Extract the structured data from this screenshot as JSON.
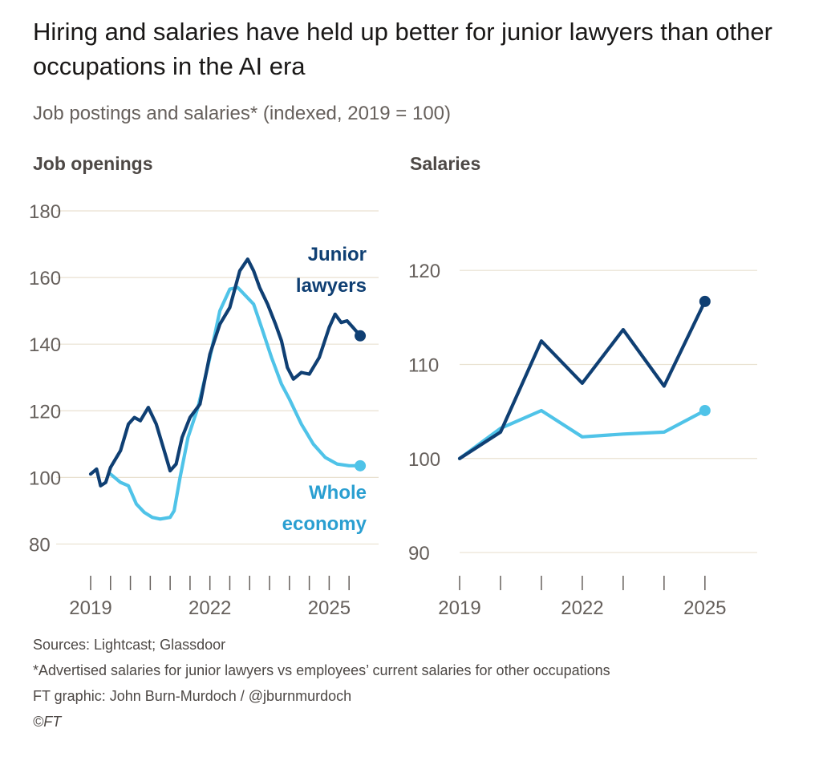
{
  "title": "Hiring and salaries have held up better for junior lawyers than other occupations in the AI era",
  "subtitle": "Job postings and salaries* (indexed, 2019 = 100)",
  "colors": {
    "junior_lawyers": "#0f3f73",
    "whole_economy": "#4fc3e8",
    "gridline": "#e9e1d0",
    "axis_text": "#66605c",
    "tick": "#66605c"
  },
  "chart_data": [
    {
      "type": "line",
      "title": "Job openings",
      "xlabel": "",
      "ylabel": "",
      "x_range": [
        2019,
        2025.9
      ],
      "ylim": [
        70,
        180
      ],
      "y_ticks": [
        80,
        100,
        120,
        140,
        160,
        180
      ],
      "x_ticks": [
        2019,
        2019.5,
        2020,
        2020.5,
        2021,
        2021.5,
        2022,
        2022.5,
        2023,
        2023.5,
        2024,
        2024.5,
        2025,
        2025.5
      ],
      "x_tick_labels": [
        {
          "x": 2019,
          "label": "2019"
        },
        {
          "x": 2022,
          "label": "2022"
        },
        {
          "x": 2025,
          "label": "2025"
        }
      ],
      "grid": true,
      "series": [
        {
          "name": "Junior lawyers",
          "label_lines": [
            "Junior",
            "lawyers"
          ],
          "color_key": "junior_lawyers",
          "x": [
            2019.0,
            2019.15,
            2019.25,
            2019.38,
            2019.5,
            2019.75,
            2019.95,
            2020.1,
            2020.25,
            2020.45,
            2020.65,
            2020.9,
            2021.0,
            2021.15,
            2021.3,
            2021.5,
            2021.75,
            2022.0,
            2022.25,
            2022.5,
            2022.75,
            2022.95,
            2023.1,
            2023.25,
            2023.45,
            2023.65,
            2023.8,
            2023.95,
            2024.1,
            2024.3,
            2024.5,
            2024.75,
            2025.0,
            2025.15,
            2025.3,
            2025.45,
            2025.6,
            2025.78
          ],
          "values": [
            101,
            102.5,
            97.5,
            98.5,
            103,
            108,
            116,
            118,
            117,
            121,
            116,
            106,
            102,
            104,
            112,
            118,
            122,
            137,
            146,
            151,
            162,
            165.5,
            162,
            157,
            152,
            146,
            141,
            133,
            129.5,
            131.5,
            131,
            136,
            145,
            149,
            146.5,
            147,
            145,
            142.5
          ]
        },
        {
          "name": "Whole economy",
          "label_lines": [
            "Whole",
            "economy"
          ],
          "color_key": "whole_economy",
          "x": [
            2019.5,
            2019.75,
            2019.95,
            2020.15,
            2020.35,
            2020.55,
            2020.75,
            2021.0,
            2021.1,
            2021.25,
            2021.45,
            2021.7,
            2022.0,
            2022.25,
            2022.5,
            2022.7,
            2022.9,
            2023.1,
            2023.3,
            2023.55,
            2023.8,
            2024.0,
            2024.3,
            2024.6,
            2024.9,
            2025.2,
            2025.5,
            2025.78
          ],
          "values": [
            101,
            98.5,
            97.5,
            92,
            89.5,
            88,
            87.5,
            88,
            90,
            100,
            112,
            121,
            136,
            150,
            156.5,
            157,
            154.5,
            152,
            145,
            136,
            128,
            123.5,
            116,
            110,
            106,
            104,
            103.5,
            103.5
          ]
        }
      ]
    },
    {
      "type": "line",
      "title": "Salaries",
      "xlabel": "",
      "ylabel": "",
      "x_range": [
        2019,
        2026.2
      ],
      "ylim": [
        86,
        123
      ],
      "y_ticks": [
        90,
        100,
        110,
        120
      ],
      "x_ticks": [
        2019,
        2020,
        2021,
        2022,
        2023,
        2024,
        2025
      ],
      "x_tick_labels": [
        {
          "x": 2019,
          "label": "2019"
        },
        {
          "x": 2022,
          "label": "2022"
        },
        {
          "x": 2025,
          "label": "2025"
        }
      ],
      "grid": true,
      "series": [
        {
          "name": "Junior lawyers",
          "color_key": "junior_lawyers",
          "x": [
            2019,
            2020,
            2021,
            2022,
            2023,
            2024,
            2025
          ],
          "values": [
            100,
            102.8,
            112.5,
            108,
            113.7,
            107.7,
            116.7
          ]
        },
        {
          "name": "Whole economy",
          "color_key": "whole_economy",
          "x": [
            2019,
            2020,
            2021,
            2022,
            2023,
            2024,
            2025
          ],
          "values": [
            100,
            103.2,
            105.1,
            102.3,
            102.6,
            102.8,
            105.1
          ]
        }
      ]
    }
  ],
  "footnotes": {
    "sources": "Sources: Lightcast; Glassdoor",
    "note": "*Advertised salaries for junior lawyers vs employees’ current salaries for other occupations",
    "credit": "FT graphic: John Burn-Murdoch / @jburnmurdoch",
    "copyright": "©FT"
  }
}
